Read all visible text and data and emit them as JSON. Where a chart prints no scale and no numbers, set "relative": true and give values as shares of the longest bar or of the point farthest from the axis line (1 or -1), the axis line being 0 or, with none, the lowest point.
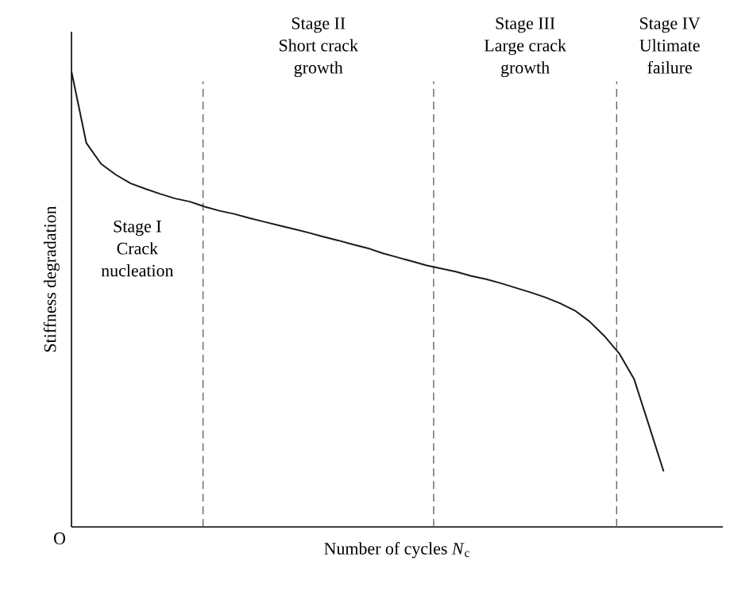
{
  "chart_data": {
    "type": "line",
    "relative": true,
    "xlabel": "Number of cycles *N*$_{c}$",
    "ylabel": "Stiffness degradation",
    "categories": [
      null,
      null,
      null,
      null,
      null,
      null,
      null,
      null,
      null,
      null,
      null,
      null,
      null,
      null,
      null,
      null,
      null,
      null,
      null,
      null,
      null,
      null,
      null,
      null,
      null,
      null,
      null,
      null,
      null,
      null,
      null,
      null,
      null,
      null,
      null,
      null,
      null,
      null,
      null,
      null,
      null
    ],
    "series": [
      {
        "color": "#1a1a1a",
        "values": [
          1.0,
          0.843,
          0.797,
          0.773,
          0.754,
          0.742,
          0.731,
          0.721,
          0.714,
          0.703,
          0.694,
          0.687,
          0.678,
          0.67,
          0.662,
          0.654,
          0.646,
          0.637,
          0.629,
          0.62,
          0.612,
          0.601,
          0.592,
          0.583,
          0.574,
          0.567,
          0.56,
          0.551,
          0.544,
          0.535,
          0.525,
          0.515,
          0.504,
          0.491,
          0.475,
          0.451,
          0.419,
          0.381,
          0.325,
          0.224,
          0.122
        ]
      }
    ],
    "annotations": [
      "O",
      "Stage I",
      "Crack",
      "nucleation",
      "Stage II",
      "Short crack",
      "growth",
      "Stage III",
      "Large crack",
      "growth",
      "Stage IV",
      "Ultimate",
      "failure"
    ]
  }
}
